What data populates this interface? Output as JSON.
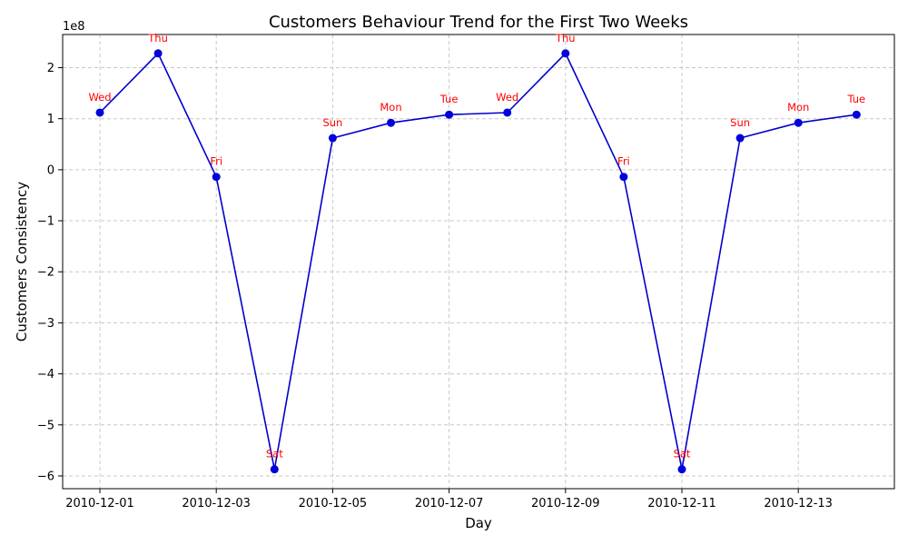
{
  "chart_data": {
    "type": "line",
    "title": "Customers Behaviour Trend for the First Two Weeks",
    "xlabel": "Day",
    "ylabel": "Customers Consistency",
    "y_offset_label": "1e8",
    "x_tick_labels": [
      "2010-12-01",
      "2010-12-03",
      "2010-12-05",
      "2010-12-07",
      "2010-12-09",
      "2010-12-11",
      "2010-12-13"
    ],
    "y_ticks": [
      2,
      1,
      0,
      -1,
      -2,
      -3,
      -4,
      -5,
      -6
    ],
    "y_tick_labels": [
      "2",
      "1",
      "0",
      "−1",
      "−2",
      "−3",
      "−4",
      "−5",
      "−6"
    ],
    "ylim": [
      -6.25,
      2.65
    ],
    "grid": true,
    "x": [
      "2010-12-01",
      "2010-12-02",
      "2010-12-03",
      "2010-12-04",
      "2010-12-05",
      "2010-12-06",
      "2010-12-07",
      "2010-12-08",
      "2010-12-09",
      "2010-12-10",
      "2010-12-11",
      "2010-12-12",
      "2010-12-13",
      "2010-12-14"
    ],
    "values": [
      1.12,
      2.28,
      -0.14,
      -5.87,
      0.62,
      0.92,
      1.08,
      1.12,
      2.28,
      -0.14,
      -5.87,
      0.62,
      0.92,
      1.08
    ],
    "point_labels": [
      "Wed",
      "Thu",
      "Fri",
      "Sat",
      "Sun",
      "Mon",
      "Tue",
      "Wed",
      "Thu",
      "Fri",
      "Sat",
      "Sun",
      "Mon",
      "Tue"
    ],
    "colors": {
      "line": "#0000cc",
      "marker": "#0000dd",
      "labels": "#ff0000"
    }
  }
}
